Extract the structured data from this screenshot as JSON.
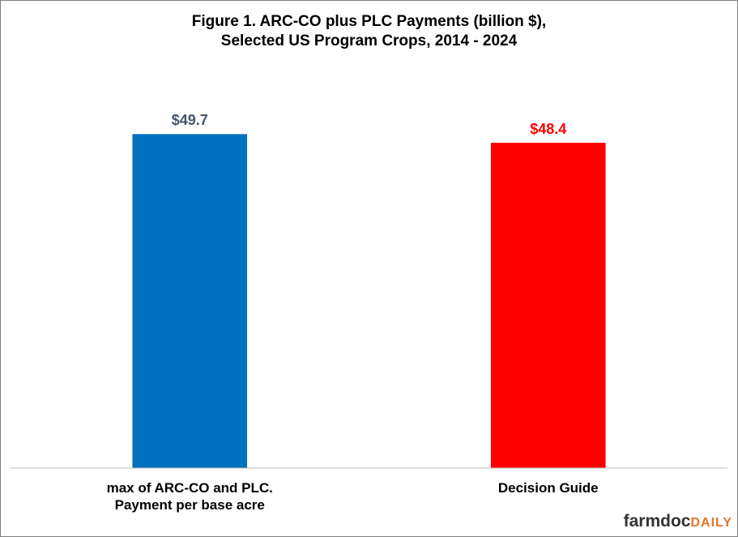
{
  "chart_data": {
    "type": "bar",
    "title": "Figure 1. ARC-CO plus PLC Payments (billion $),\nSelected US Program Crops, 2014 - 2024",
    "categories": [
      "max of ARC-CO and PLC.\nPayment per base acre",
      "Decision Guide"
    ],
    "values": [
      49.7,
      48.4
    ],
    "value_labels": [
      "$49.7",
      "$48.4"
    ],
    "colors": [
      "#0070c0",
      "#ff0000"
    ],
    "label_colors": [
      "#44546a",
      "#ff0000"
    ],
    "ylim": [
      0,
      60
    ],
    "grid": false
  },
  "logo": {
    "part1": "farmdoc",
    "part2": "DAILY"
  }
}
